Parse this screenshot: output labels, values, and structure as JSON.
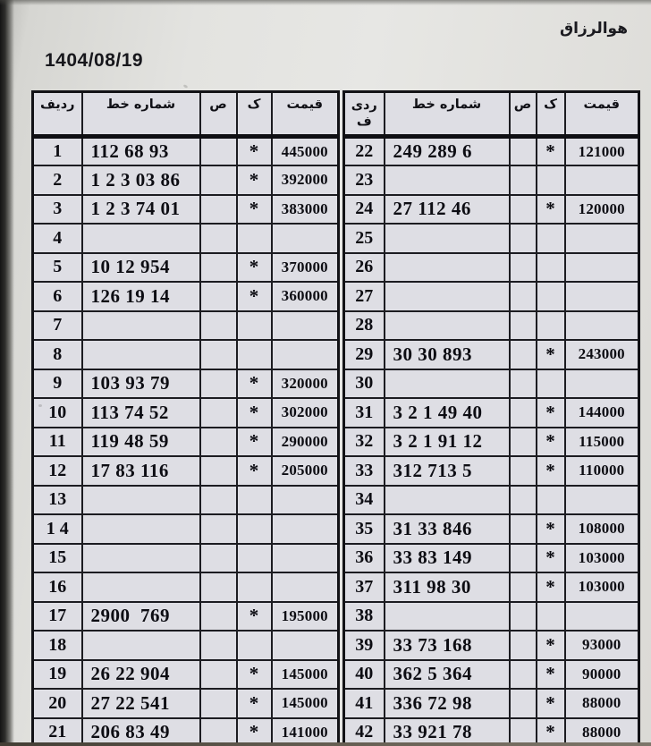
{
  "page": {
    "bismillah": "هوالرزاق",
    "date": "1404/08/19"
  },
  "colors": {
    "paper": "#e3e3e0",
    "cell_fill": "#dedee4",
    "border": "#1c1c21",
    "ink": "#0d0d13",
    "scan_edge": "#141414"
  },
  "table": {
    "headers": {
      "row_number": "ردیف",
      "row_number_wrapped": "ردی\nف",
      "line_number": "شماره خط",
      "s": "ص",
      "k": "ک",
      "price": "قیمت"
    },
    "left_rows": [
      {
        "no": "1",
        "line": "112 68 93",
        "s": "",
        "k": "*",
        "price": "445000"
      },
      {
        "no": "2",
        "line": "1 2 3 03 86",
        "s": "",
        "k": "*",
        "price": "392000"
      },
      {
        "no": "3",
        "line": "1 2 3 74 01",
        "s": "",
        "k": "*",
        "price": "383000"
      },
      {
        "no": "4",
        "line": "",
        "s": "",
        "k": "",
        "price": ""
      },
      {
        "no": "5",
        "line": "10 12 954",
        "s": "",
        "k": "*",
        "price": "370000"
      },
      {
        "no": "6",
        "line": "126 19 14",
        "s": "",
        "k": "*",
        "price": "360000"
      },
      {
        "no": "7",
        "line": "",
        "s": "",
        "k": "",
        "price": ""
      },
      {
        "no": "8",
        "line": "",
        "s": "",
        "k": "",
        "price": ""
      },
      {
        "no": "9",
        "line": "103 93 79",
        "s": "",
        "k": "*",
        "price": "320000"
      },
      {
        "no": "10",
        "line": "113 74 52",
        "s": "",
        "k": "*",
        "price": "302000"
      },
      {
        "no": "11",
        "line": "119 48 59",
        "s": "",
        "k": "*",
        "price": "290000"
      },
      {
        "no": "12",
        "line": "17 83 116",
        "s": "",
        "k": "*",
        "price": "205000"
      },
      {
        "no": "13",
        "line": "",
        "s": "",
        "k": "",
        "price": ""
      },
      {
        "no": "1 4",
        "line": "",
        "s": "",
        "k": "",
        "price": ""
      },
      {
        "no": "15",
        "line": "",
        "s": "",
        "k": "",
        "price": ""
      },
      {
        "no": "16",
        "line": "",
        "s": "",
        "k": "",
        "price": ""
      },
      {
        "no": "17",
        "line": "2900  769",
        "s": "",
        "k": "*",
        "price": "195000"
      },
      {
        "no": "18",
        "line": "",
        "s": "",
        "k": "",
        "price": ""
      },
      {
        "no": "19",
        "line": "26 22 904",
        "s": "",
        "k": "*",
        "price": "145000"
      },
      {
        "no": "20",
        "line": "27 22 541",
        "s": "",
        "k": "*",
        "price": "145000"
      },
      {
        "no": "21",
        "line": "206 83 49",
        "s": "",
        "k": "*",
        "price": "141000"
      }
    ],
    "right_rows": [
      {
        "no": "22",
        "line": "249 289 6",
        "s": "",
        "k": "*",
        "price": "121000"
      },
      {
        "no": "23",
        "line": "",
        "s": "",
        "k": "",
        "price": ""
      },
      {
        "no": "24",
        "line": "27 112 46",
        "s": "",
        "k": "*",
        "price": "120000"
      },
      {
        "no": "25",
        "line": "",
        "s": "",
        "k": "",
        "price": ""
      },
      {
        "no": "26",
        "line": "",
        "s": "",
        "k": "",
        "price": ""
      },
      {
        "no": "27",
        "line": "",
        "s": "",
        "k": "",
        "price": ""
      },
      {
        "no": "28",
        "line": "",
        "s": "",
        "k": "",
        "price": ""
      },
      {
        "no": "29",
        "line": "30 30 893",
        "s": "",
        "k": "*",
        "price": "243000"
      },
      {
        "no": "30",
        "line": "",
        "s": "",
        "k": "",
        "price": ""
      },
      {
        "no": "31",
        "line": "3 2 1 49 40",
        "s": "",
        "k": "*",
        "price": "144000"
      },
      {
        "no": "32",
        "line": "3 2 1 91 12",
        "s": "",
        "k": "*",
        "price": "115000"
      },
      {
        "no": "33",
        "line": "312 713 5",
        "s": "",
        "k": "*",
        "price": "110000"
      },
      {
        "no": "34",
        "line": "",
        "s": "",
        "k": "",
        "price": ""
      },
      {
        "no": "35",
        "line": "31 33 846",
        "s": "",
        "k": "*",
        "price": "108000"
      },
      {
        "no": "36",
        "line": "33 83 149",
        "s": "",
        "k": "*",
        "price": "103000"
      },
      {
        "no": "37",
        "line": "311 98 30",
        "s": "",
        "k": "*",
        "price": "103000"
      },
      {
        "no": "38",
        "line": "",
        "s": "",
        "k": "",
        "price": ""
      },
      {
        "no": "39",
        "line": "33 73 168",
        "s": "",
        "k": "*",
        "price": "93000"
      },
      {
        "no": "40",
        "line": "362 5 364",
        "s": "",
        "k": "*",
        "price": "90000"
      },
      {
        "no": "41",
        "line": "336 72 98",
        "s": "",
        "k": "*",
        "price": "88000"
      },
      {
        "no": "42",
        "line": "33 921 78",
        "s": "",
        "k": "*",
        "price": "88000"
      }
    ]
  }
}
